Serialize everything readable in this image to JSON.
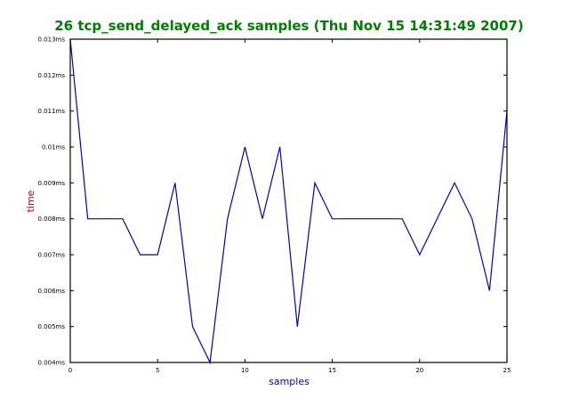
{
  "colors": {
    "title": "#008000",
    "xlabel": "#0000cc",
    "ylabel": "#cc0000",
    "series": "#0000cc",
    "frame": "#000000",
    "background": "#ffffff"
  },
  "chart_data": {
    "type": "line",
    "title": "26 tcp_send_delayed_ack samples (Thu Nov 15 14:31:49 2007)",
    "xlabel": "samples",
    "ylabel": "time",
    "xlim": [
      0,
      25
    ],
    "ylim": [
      0.004,
      0.013
    ],
    "grid": false,
    "xticks": [
      0,
      5,
      10,
      15,
      20,
      25
    ],
    "xtick_labels": [
      "0",
      "5",
      "10",
      "15",
      "20",
      "25"
    ],
    "yticks": [
      0.004,
      0.005,
      0.006,
      0.007,
      0.008,
      0.009,
      0.01,
      0.011,
      0.012,
      0.013
    ],
    "ytick_labels": [
      "0.004ms",
      "0.005ms",
      "0.006ms",
      "0.007ms",
      "0.008ms",
      "0.009ms",
      "0.01ms",
      "0.011ms",
      "0.012ms",
      "0.013ms"
    ],
    "series": [
      {
        "x": [
          0,
          1,
          2,
          3,
          4,
          5,
          6,
          7,
          8,
          9,
          10,
          11,
          12,
          13,
          14,
          15,
          16,
          17,
          18,
          19,
          20,
          21,
          22,
          23,
          24,
          25
        ],
        "values": [
          0.013,
          0.008,
          0.008,
          0.008,
          0.007,
          0.007,
          0.009,
          0.005,
          0.004,
          0.008,
          0.01,
          0.008,
          0.01,
          0.005,
          0.009,
          0.008,
          0.008,
          0.008,
          0.008,
          0.008,
          0.007,
          0.008,
          0.009,
          0.008,
          0.006,
          0.011
        ]
      }
    ]
  }
}
